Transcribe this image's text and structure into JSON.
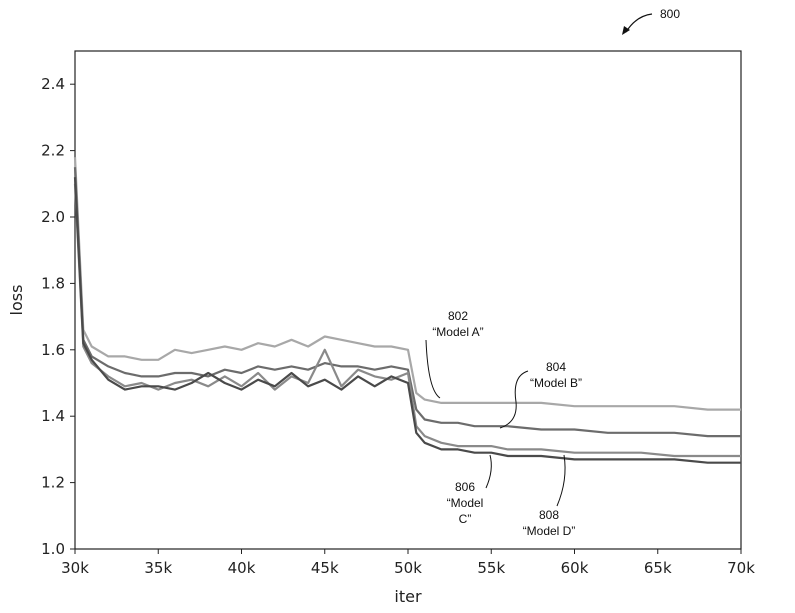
{
  "figure_ref": "800",
  "chart_data": {
    "type": "line",
    "xlabel": "iter",
    "ylabel": "loss",
    "xlim": [
      30000,
      70000
    ],
    "ylim": [
      1.0,
      2.5
    ],
    "x_ticks": [
      30000,
      35000,
      40000,
      45000,
      50000,
      55000,
      60000,
      65000,
      70000
    ],
    "x_tick_labels": [
      "30k",
      "35k",
      "40k",
      "45k",
      "50k",
      "55k",
      "60k",
      "65k",
      "70k"
    ],
    "y_ticks": [
      1.0,
      1.2,
      1.4,
      1.6,
      1.8,
      2.0,
      2.2,
      2.4
    ],
    "y_tick_labels": [
      "1.0",
      "1.2",
      "1.4",
      "1.6",
      "1.8",
      "2.0",
      "2.2",
      "2.4"
    ],
    "grid": false,
    "series": [
      {
        "color": "#a8a8a8",
        "points": [
          [
            30000,
            2.18
          ],
          [
            30500,
            1.66
          ],
          [
            31000,
            1.61
          ],
          [
            32000,
            1.58
          ],
          [
            33000,
            1.58
          ],
          [
            34000,
            1.57
          ],
          [
            35000,
            1.57
          ],
          [
            36000,
            1.6
          ],
          [
            37000,
            1.59
          ],
          [
            38000,
            1.6
          ],
          [
            39000,
            1.61
          ],
          [
            40000,
            1.6
          ],
          [
            41000,
            1.62
          ],
          [
            42000,
            1.61
          ],
          [
            43000,
            1.63
          ],
          [
            44000,
            1.61
          ],
          [
            45000,
            1.64
          ],
          [
            46000,
            1.63
          ],
          [
            47000,
            1.62
          ],
          [
            48000,
            1.61
          ],
          [
            49000,
            1.61
          ],
          [
            50000,
            1.6
          ],
          [
            50500,
            1.47
          ],
          [
            51000,
            1.45
          ],
          [
            52000,
            1.44
          ],
          [
            53000,
            1.44
          ],
          [
            54000,
            1.44
          ],
          [
            55000,
            1.44
          ],
          [
            56000,
            1.44
          ],
          [
            58000,
            1.44
          ],
          [
            60000,
            1.43
          ],
          [
            62000,
            1.43
          ],
          [
            64000,
            1.43
          ],
          [
            66000,
            1.43
          ],
          [
            68000,
            1.42
          ],
          [
            70000,
            1.42
          ]
        ]
      },
      {
        "color": "#6c6c6c",
        "points": [
          [
            30000,
            2.15
          ],
          [
            30500,
            1.63
          ],
          [
            31000,
            1.58
          ],
          [
            32000,
            1.55
          ],
          [
            33000,
            1.53
          ],
          [
            34000,
            1.52
          ],
          [
            35000,
            1.52
          ],
          [
            36000,
            1.53
          ],
          [
            37000,
            1.53
          ],
          [
            38000,
            1.52
          ],
          [
            39000,
            1.54
          ],
          [
            40000,
            1.53
          ],
          [
            41000,
            1.55
          ],
          [
            42000,
            1.54
          ],
          [
            43000,
            1.55
          ],
          [
            44000,
            1.54
          ],
          [
            45000,
            1.56
          ],
          [
            46000,
            1.55
          ],
          [
            47000,
            1.55
          ],
          [
            48000,
            1.54
          ],
          [
            49000,
            1.55
          ],
          [
            50000,
            1.54
          ],
          [
            50500,
            1.42
          ],
          [
            51000,
            1.39
          ],
          [
            52000,
            1.38
          ],
          [
            53000,
            1.38
          ],
          [
            54000,
            1.37
          ],
          [
            55000,
            1.37
          ],
          [
            56000,
            1.37
          ],
          [
            58000,
            1.36
          ],
          [
            60000,
            1.36
          ],
          [
            62000,
            1.35
          ],
          [
            64000,
            1.35
          ],
          [
            66000,
            1.35
          ],
          [
            68000,
            1.34
          ],
          [
            70000,
            1.34
          ]
        ]
      },
      {
        "color": "#8a8a8a",
        "points": [
          [
            30000,
            2.1
          ],
          [
            30500,
            1.61
          ],
          [
            31000,
            1.56
          ],
          [
            32000,
            1.52
          ],
          [
            33000,
            1.49
          ],
          [
            34000,
            1.5
          ],
          [
            35000,
            1.48
          ],
          [
            36000,
            1.5
          ],
          [
            37000,
            1.51
          ],
          [
            38000,
            1.49
          ],
          [
            39000,
            1.52
          ],
          [
            40000,
            1.49
          ],
          [
            41000,
            1.53
          ],
          [
            42000,
            1.48
          ],
          [
            43000,
            1.52
          ],
          [
            44000,
            1.5
          ],
          [
            45000,
            1.6
          ],
          [
            46000,
            1.49
          ],
          [
            47000,
            1.54
          ],
          [
            48000,
            1.52
          ],
          [
            49000,
            1.51
          ],
          [
            50000,
            1.53
          ],
          [
            50500,
            1.37
          ],
          [
            51000,
            1.34
          ],
          [
            52000,
            1.32
          ],
          [
            53000,
            1.31
          ],
          [
            54000,
            1.31
          ],
          [
            55000,
            1.31
          ],
          [
            56000,
            1.3
          ],
          [
            58000,
            1.3
          ],
          [
            60000,
            1.29
          ],
          [
            62000,
            1.29
          ],
          [
            64000,
            1.29
          ],
          [
            66000,
            1.28
          ],
          [
            68000,
            1.28
          ],
          [
            70000,
            1.28
          ]
        ]
      },
      {
        "color": "#4a4a4a",
        "points": [
          [
            30000,
            2.12
          ],
          [
            30500,
            1.62
          ],
          [
            31000,
            1.57
          ],
          [
            32000,
            1.51
          ],
          [
            33000,
            1.48
          ],
          [
            34000,
            1.49
          ],
          [
            35000,
            1.49
          ],
          [
            36000,
            1.48
          ],
          [
            37000,
            1.5
          ],
          [
            38000,
            1.53
          ],
          [
            39000,
            1.5
          ],
          [
            40000,
            1.48
          ],
          [
            41000,
            1.51
          ],
          [
            42000,
            1.49
          ],
          [
            43000,
            1.53
          ],
          [
            44000,
            1.49
          ],
          [
            45000,
            1.51
          ],
          [
            46000,
            1.48
          ],
          [
            47000,
            1.52
          ],
          [
            48000,
            1.49
          ],
          [
            49000,
            1.52
          ],
          [
            50000,
            1.5
          ],
          [
            50500,
            1.35
          ],
          [
            51000,
            1.32
          ],
          [
            52000,
            1.3
          ],
          [
            53000,
            1.3
          ],
          [
            54000,
            1.29
          ],
          [
            55000,
            1.29
          ],
          [
            56000,
            1.28
          ],
          [
            58000,
            1.28
          ],
          [
            60000,
            1.27
          ],
          [
            62000,
            1.27
          ],
          [
            64000,
            1.27
          ],
          [
            66000,
            1.27
          ],
          [
            68000,
            1.26
          ],
          [
            70000,
            1.26
          ]
        ]
      }
    ],
    "annotations": [
      {
        "ref": "802",
        "label": "“Model A”"
      },
      {
        "ref": "804",
        "label": "“Model  B”"
      },
      {
        "ref": "806",
        "label_lines": [
          "“Model",
          "C”"
        ]
      },
      {
        "ref": "808",
        "label": "“Model D”"
      }
    ]
  }
}
